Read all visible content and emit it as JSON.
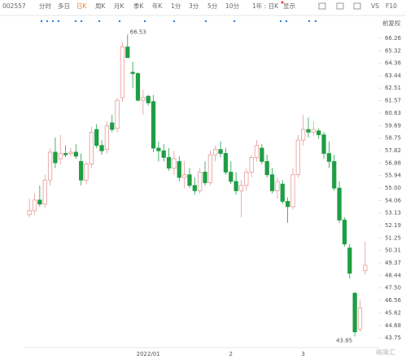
{
  "toolbar": {
    "code": "002557",
    "tabs": [
      "分时",
      "多日",
      "日K",
      "周K",
      "月K",
      "季K",
      "年K",
      "1分",
      "3分",
      "5分",
      "10分"
    ],
    "selected_tab": 2,
    "period": "1年 : 日K",
    "display": "显示",
    "vs": "VS",
    "f10": "F10",
    "adjust": "前复权"
  },
  "watermark": "格隆汇",
  "chart_data": {
    "type": "candlestick",
    "categories": [
      null,
      null,
      null,
      null,
      null,
      null,
      null,
      null,
      null,
      null,
      null,
      null,
      null,
      null,
      null,
      null,
      null,
      null,
      null,
      null,
      null,
      null,
      null,
      "2022/01",
      null,
      null,
      null,
      null,
      null,
      null,
      null,
      null,
      null,
      null,
      null,
      null,
      null,
      null,
      null,
      "2",
      null,
      null,
      null,
      null,
      null,
      null,
      null,
      null,
      null,
      null,
      null,
      null,
      null,
      "3",
      null,
      null,
      null,
      null,
      null,
      null,
      null,
      null,
      null,
      null,
      null,
      null
    ],
    "open": [
      53.0,
      53.3,
      54.1,
      53.8,
      55.6,
      57.7,
      57.2,
      57.6,
      57.6,
      57.7,
      57.0,
      55.6,
      56.8,
      59.4,
      58.2,
      57.9,
      59.9,
      59.5,
      61.8,
      65.6,
      63.7,
      63.6,
      61.6,
      61.9,
      61.5,
      58.0,
      57.8,
      57.3,
      56.5,
      57.0,
      55.8,
      56.0,
      55.2,
      54.8,
      56.2,
      55.4,
      57.5,
      57.9,
      57.6,
      56.2,
      55.5,
      54.8,
      55.2,
      56.2,
      57.3,
      58.0,
      57.0,
      56.0,
      54.8,
      55.3,
      54.0,
      53.6,
      56.0,
      58.6,
      59.4,
      59.2,
      59.3,
      59.0,
      57.6,
      57.0,
      55.0,
      52.6,
      50.5,
      47.1,
      44.4,
      48.8
    ],
    "high": [
      54.2,
      54.6,
      55.2,
      56.0,
      58.0,
      58.8,
      59.0,
      58.2,
      58.0,
      58.3,
      57.6,
      57.0,
      59.6,
      59.8,
      58.6,
      60.0,
      60.5,
      61.8,
      66.0,
      66.53,
      64.5,
      63.7,
      62.4,
      62.0,
      62.0,
      58.5,
      58.3,
      58.0,
      57.8,
      57.4,
      57.0,
      56.5,
      55.8,
      56.5,
      57.0,
      57.8,
      58.2,
      58.5,
      58.0,
      57.0,
      56.2,
      55.6,
      56.5,
      57.5,
      58.6,
      58.3,
      57.5,
      56.5,
      55.8,
      55.6,
      54.3,
      56.5,
      59.0,
      60.5,
      60.3,
      60.0,
      59.5,
      59.2,
      58.5,
      57.5,
      55.5,
      52.8,
      50.8,
      47.2,
      46.6,
      51.0
    ],
    "low": [
      52.8,
      53.0,
      53.6,
      53.5,
      55.2,
      56.5,
      56.8,
      57.3,
      57.4,
      57.2,
      55.2,
      55.3,
      56.5,
      58.0,
      57.5,
      57.6,
      59.2,
      59.2,
      61.5,
      64.8,
      62.5,
      61.5,
      60.5,
      61.2,
      57.7,
      57.0,
      57.0,
      56.3,
      56.0,
      55.5,
      55.0,
      55.0,
      54.5,
      54.6,
      55.2,
      55.2,
      57.0,
      57.3,
      56.0,
      55.3,
      54.5,
      52.8,
      54.8,
      55.8,
      57.0,
      56.8,
      55.8,
      54.6,
      54.2,
      53.8,
      52.4,
      53.4,
      55.8,
      58.2,
      58.8,
      58.9,
      58.7,
      57.2,
      56.5,
      54.8,
      52.4,
      50.6,
      48.2,
      43.85,
      44.2,
      48.5
    ],
    "close": [
      53.3,
      54.1,
      53.8,
      55.6,
      57.7,
      56.9,
      57.6,
      57.5,
      57.7,
      57.4,
      55.6,
      56.8,
      59.2,
      58.2,
      57.8,
      59.7,
      59.4,
      61.6,
      65.6,
      64.8,
      63.6,
      61.6,
      61.8,
      61.4,
      58.0,
      57.8,
      57.3,
      56.5,
      57.2,
      55.8,
      56.0,
      55.2,
      54.8,
      56.2,
      55.4,
      57.5,
      57.9,
      57.6,
      56.2,
      55.5,
      54.8,
      55.2,
      56.2,
      57.3,
      58.2,
      57.0,
      56.0,
      54.8,
      55.5,
      54.0,
      53.6,
      56.0,
      58.6,
      59.4,
      59.2,
      59.4,
      59.0,
      57.6,
      57.0,
      55.0,
      52.6,
      50.8,
      48.6,
      44.2,
      46.0,
      49.2
    ],
    "up_color": "#e79a9a",
    "down_color": "#1f9e44",
    "ylim": [
      43.14,
      67.11
    ],
    "yticks": [
      66.26,
      65.32,
      64.38,
      63.44,
      62.51,
      61.57,
      60.63,
      59.69,
      58.75,
      57.82,
      56.88,
      55.94,
      {
        "value": 55,
        "label": "55.00"
      },
      54.06,
      53.13,
      52.19,
      51.25,
      50.31,
      49.37,
      48.44,
      {
        "value": 47.5,
        "label": "47.50"
      },
      46.56,
      45.62,
      44.68,
      43.75
    ],
    "high_label": "66.53",
    "low_label": "43.85",
    "grid": false
  }
}
